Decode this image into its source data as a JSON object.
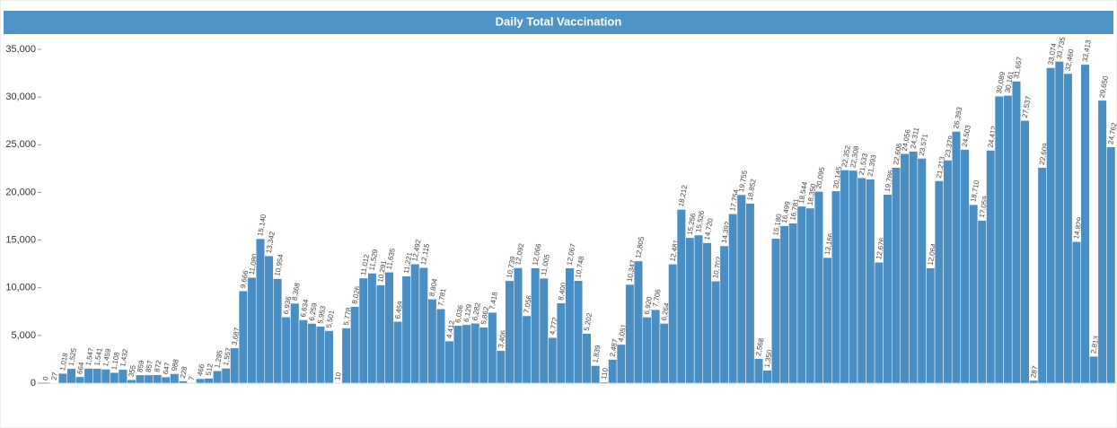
{
  "chart_data": {
    "type": "bar",
    "title": "Daily Total Vaccination",
    "color": "#4a8fc4",
    "categories": [
      null,
      null,
      null,
      null,
      null,
      null,
      null,
      null,
      null,
      null,
      null,
      null,
      null,
      null,
      null,
      null,
      null,
      null,
      null,
      null,
      null,
      null,
      null,
      null,
      null,
      null,
      null,
      null,
      null,
      null,
      null,
      null,
      null,
      null,
      null,
      null,
      null,
      null,
      null,
      null,
      null,
      null,
      null,
      null,
      null,
      null,
      null,
      null,
      null,
      null,
      null,
      null,
      null,
      null,
      null,
      null,
      null,
      null,
      null,
      null,
      null,
      null,
      null,
      null,
      null,
      null,
      null,
      null,
      null,
      null,
      null,
      null,
      null,
      null,
      null,
      null,
      null,
      null,
      null,
      null,
      null,
      null,
      null,
      null,
      null,
      null,
      null,
      null,
      null,
      null,
      null,
      null,
      null,
      null,
      null,
      null,
      null,
      null,
      null,
      null,
      null,
      null,
      null,
      null,
      null,
      null,
      null,
      null,
      null,
      null,
      null,
      null,
      null,
      null,
      null,
      null,
      null,
      null,
      null,
      null,
      null,
      null,
      null,
      null,
      null
    ],
    "values": [
      0,
      27,
      1018,
      1525,
      664,
      1547,
      1541,
      1459,
      1108,
      1432,
      355,
      859,
      857,
      872,
      647,
      988,
      228,
      7,
      466,
      512,
      1295,
      1557,
      3687,
      9666,
      11080,
      15140,
      13342,
      10954,
      6936,
      8368,
      6634,
      6259,
      5953,
      5501,
      10,
      5778,
      8026,
      11012,
      11529,
      10291,
      11635,
      6459,
      11221,
      12492,
      12115,
      8804,
      7781,
      4412,
      6036,
      6129,
      6282,
      5862,
      7418,
      3406,
      10739,
      12092,
      7056,
      12066,
      11005,
      4772,
      8400,
      12067,
      10748,
      5202,
      1839,
      110,
      2487,
      4051,
      10347,
      12805,
      6920,
      7706,
      6264,
      12481,
      18212,
      15256,
      15526,
      14720,
      10702,
      14392,
      17754,
      19755,
      18852,
      2568,
      1350,
      15180,
      16499,
      16781,
      18544,
      18350,
      20095,
      13166,
      20145,
      22352,
      22308,
      21533,
      21393,
      12676,
      19786,
      22606,
      24056,
      24311,
      23571,
      12064,
      21213,
      23379,
      26393,
      24503,
      18710,
      17059,
      24412,
      30089,
      30161,
      31657,
      27537,
      287,
      22609,
      33074,
      33735,
      32460,
      14829,
      33413,
      2813,
      29650,
      24762
    ],
    "value_labels": [
      "0",
      "27",
      "1,018",
      "1,525",
      "664",
      "1,547",
      "1,541",
      "1,459",
      "1,108",
      "1,432",
      "355",
      "859",
      "857",
      "872",
      "647",
      "988",
      "228",
      "7",
      "466",
      "512",
      "1,295",
      "1,557",
      "3,687",
      "9,666",
      "11,080",
      "15,140",
      "13,342",
      "10,954",
      "6,936",
      "8,368",
      "6,634",
      "6,259",
      "5,953",
      "5,501",
      "10",
      "5,778",
      "8,026",
      "11,012",
      "11,529",
      "10,291",
      "11,635",
      "6,459",
      "11,221",
      "12,492",
      "12,115",
      "8,804",
      "7,781",
      "4,412",
      "6,036",
      "6,129",
      "6,282",
      "5,862",
      "7,418",
      "3,406",
      "10,739",
      "12,092",
      "7,056",
      "12,066",
      "11,005",
      "4,772",
      "8,400",
      "12,067",
      "10,748",
      "5,202",
      "1,839",
      "110",
      "2,487",
      "4,051",
      "10,347",
      "12,805",
      "6,920",
      "7,706",
      "6,264",
      "12,481",
      "18,212",
      "15,256",
      "15,526",
      "14,720",
      "10,702",
      "14,392",
      "17,754",
      "19,755",
      "18,852",
      "2,568",
      "1,350",
      "15,180",
      "16,499",
      "16,781",
      "18,544",
      "18,350",
      "20,095",
      "13,166",
      "20,145",
      "22,352",
      "22,308",
      "21,533",
      "21,393",
      "12,676",
      "19,786",
      "22,606",
      "24,056",
      "24,311",
      "23,571",
      "12,064",
      "21,213",
      "23,379",
      "26,393",
      "24,503",
      "18,710",
      "17,059",
      "24,412",
      "30,089",
      "30,161",
      "31,657",
      "27,537",
      "287",
      "22,609",
      "33,074",
      "33,735",
      "32,460",
      "14,829",
      "33,413",
      "2,813",
      "29,650",
      "24,762"
    ],
    "ylim": [
      0,
      35000
    ],
    "yticks": [
      0,
      {
        "value": 5000,
        "label": "5,000"
      },
      {
        "value": 10000,
        "label": "10,000"
      },
      {
        "value": 15000,
        "label": "15,000"
      },
      {
        "value": 20000,
        "label": "20,000"
      },
      {
        "value": 25000,
        "label": "25,000"
      },
      {
        "value": 30000,
        "label": "30,000"
      },
      {
        "value": 35000,
        "label": "35,000"
      }
    ],
    "grid": false
  }
}
